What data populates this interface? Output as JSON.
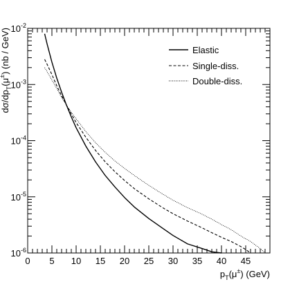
{
  "chart_data": {
    "type": "line",
    "title": "",
    "xlabel": {
      "main": "p",
      "sub": "T",
      "rest": "(μ",
      "sup": "±",
      "tail": ") (GeV)"
    },
    "ylabel": {
      "main": "dσ/dp",
      "sub": "T",
      "rest": "(μ",
      "sup": "±",
      "tail": ") (nb / GeV)"
    },
    "x_range": [
      0,
      50
    ],
    "y_range": [
      1e-06,
      0.01
    ],
    "y_scale": "log",
    "grid": false,
    "legend_position": "top-right",
    "x_ticks": [
      0,
      5,
      10,
      15,
      20,
      25,
      30,
      35,
      40,
      45
    ],
    "y_ticks": [
      {
        "value": 1e-06,
        "base": "10",
        "exp": "-6"
      },
      {
        "value": 1e-05,
        "base": "10",
        "exp": "-5"
      },
      {
        "value": 0.0001,
        "base": "10",
        "exp": "-4"
      },
      {
        "value": 0.001,
        "base": "10",
        "exp": "-3"
      },
      {
        "value": 0.01,
        "base": "10",
        "exp": "-2"
      }
    ],
    "series": [
      {
        "name": "Elastic",
        "style": "solid",
        "x": [
          3.5,
          4,
          5,
          6,
          7,
          8,
          9,
          10,
          12,
          14,
          16,
          18,
          20,
          22,
          25,
          28,
          30,
          33,
          36,
          38,
          40
        ],
        "y": [
          0.008,
          0.0053,
          0.0025,
          0.0013,
          0.00073,
          0.00043,
          0.000265,
          0.00017,
          8e-05,
          4.2e-05,
          2.4e-05,
          1.5e-05,
          9.7e-06,
          6.6e-06,
          4.1e-06,
          2.7e-06,
          2.05e-06,
          1.45e-06,
          1.2e-06,
          1.05e-06,
          1e-06
        ]
      },
      {
        "name": "Single-diss.",
        "style": "dashed",
        "x": [
          3.5,
          4,
          5,
          6,
          7,
          8,
          9,
          10,
          12,
          14,
          16,
          18,
          20,
          22,
          25,
          28,
          30,
          33,
          36,
          38,
          40,
          42,
          44,
          45,
          46
        ],
        "y": [
          0.0028,
          0.0023,
          0.0015,
          0.00095,
          0.00063,
          0.00043,
          0.0003,
          0.00021,
          0.000115,
          6.7e-05,
          4.2e-05,
          2.8e-05,
          1.95e-05,
          1.4e-05,
          9.2e-06,
          6.3e-06,
          5e-06,
          3.7e-06,
          2.8e-06,
          2.3e-06,
          1.9e-06,
          1.6e-06,
          1.3e-06,
          1.15e-06,
          1e-06
        ]
      },
      {
        "name": "Double-diss.",
        "style": "dotted",
        "x": [
          3.5,
          4,
          5,
          6,
          7,
          8,
          9,
          10,
          12,
          14,
          16,
          18,
          20,
          22,
          25,
          28,
          30,
          33,
          36,
          38,
          40,
          42,
          44,
          46,
          48,
          49
        ],
        "y": [
          0.002,
          0.0017,
          0.0012,
          0.00085,
          0.00059,
          0.00043,
          0.00032,
          0.000245,
          0.000145,
          9.2e-05,
          6.2e-05,
          4.35e-05,
          3.2e-05,
          2.4e-05,
          1.6e-05,
          1.1e-05,
          8.7e-06,
          6.4e-06,
          4.9e-06,
          4e-06,
          3.2e-06,
          2.6e-06,
          2e-06,
          1.6e-06,
          1.2e-06,
          1e-06
        ]
      }
    ]
  }
}
